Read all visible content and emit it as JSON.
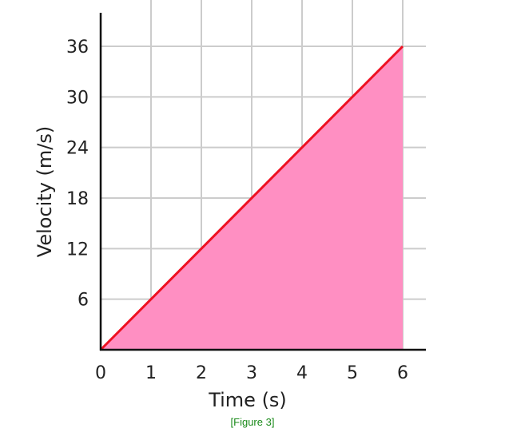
{
  "caption": "[Figure 3]",
  "colors": {
    "line": "#ee1122",
    "fill": "#ff8fc2",
    "grid": "#cccccc",
    "axis": "#111111",
    "caption": "#1a8a1a"
  },
  "chart_data": {
    "type": "area",
    "title": "",
    "xlabel": "Time (s)",
    "ylabel": "Velocity (m/s)",
    "x": [
      0,
      6
    ],
    "series": [
      {
        "values": [
          0,
          36
        ]
      }
    ],
    "xlim": [
      0,
      6.5
    ],
    "ylim": [
      0,
      42
    ],
    "xticks": [
      0,
      1,
      2,
      3,
      4,
      5,
      6
    ],
    "yticks": [
      6,
      12,
      18,
      24,
      30,
      36
    ],
    "grid": true,
    "legend": "none"
  }
}
